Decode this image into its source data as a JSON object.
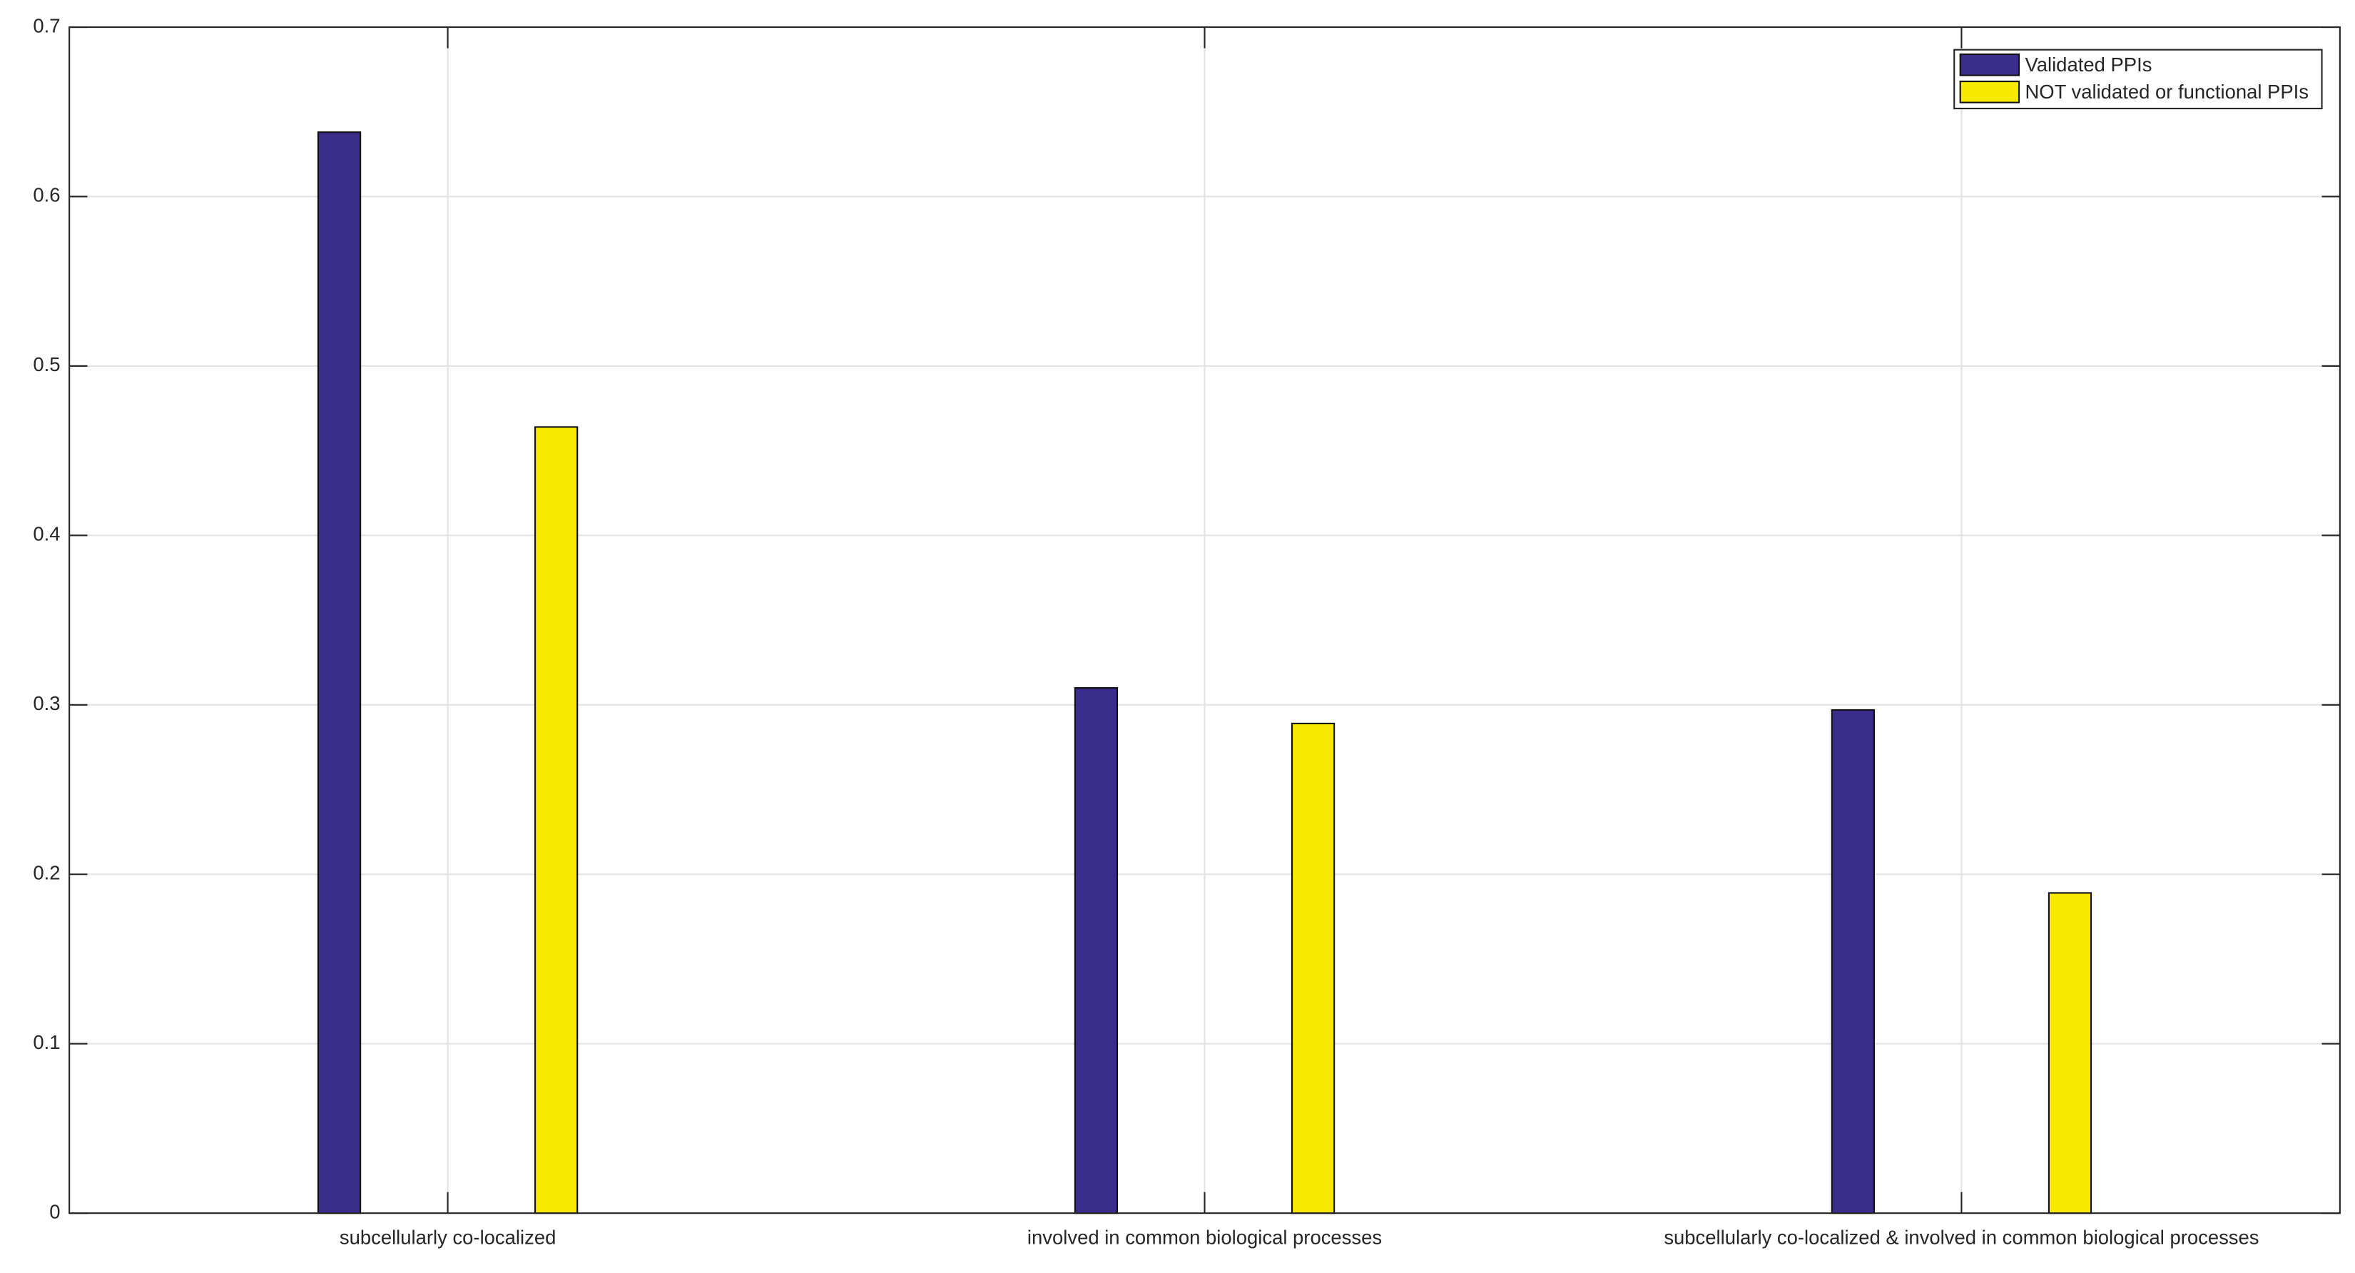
{
  "chart_data": {
    "type": "bar",
    "categories": [
      "subcellularly co-localized",
      "involved in common biological processes",
      "subcellularly co-localized & involved in common biological processes"
    ],
    "series": [
      {
        "name": "Validated PPIs",
        "color": "#3a2e8a",
        "values": [
          0.638,
          0.31,
          0.297
        ]
      },
      {
        "name": "NOT validated or functional PPIs",
        "color": "#f7e900",
        "values": [
          0.464,
          0.289,
          0.189
        ]
      }
    ],
    "ylim": [
      0,
      0.7
    ],
    "yticks": [
      0,
      0.1,
      0.2,
      0.3,
      0.4,
      0.5,
      0.6,
      0.7
    ],
    "grid": true,
    "legend": "top-right"
  }
}
